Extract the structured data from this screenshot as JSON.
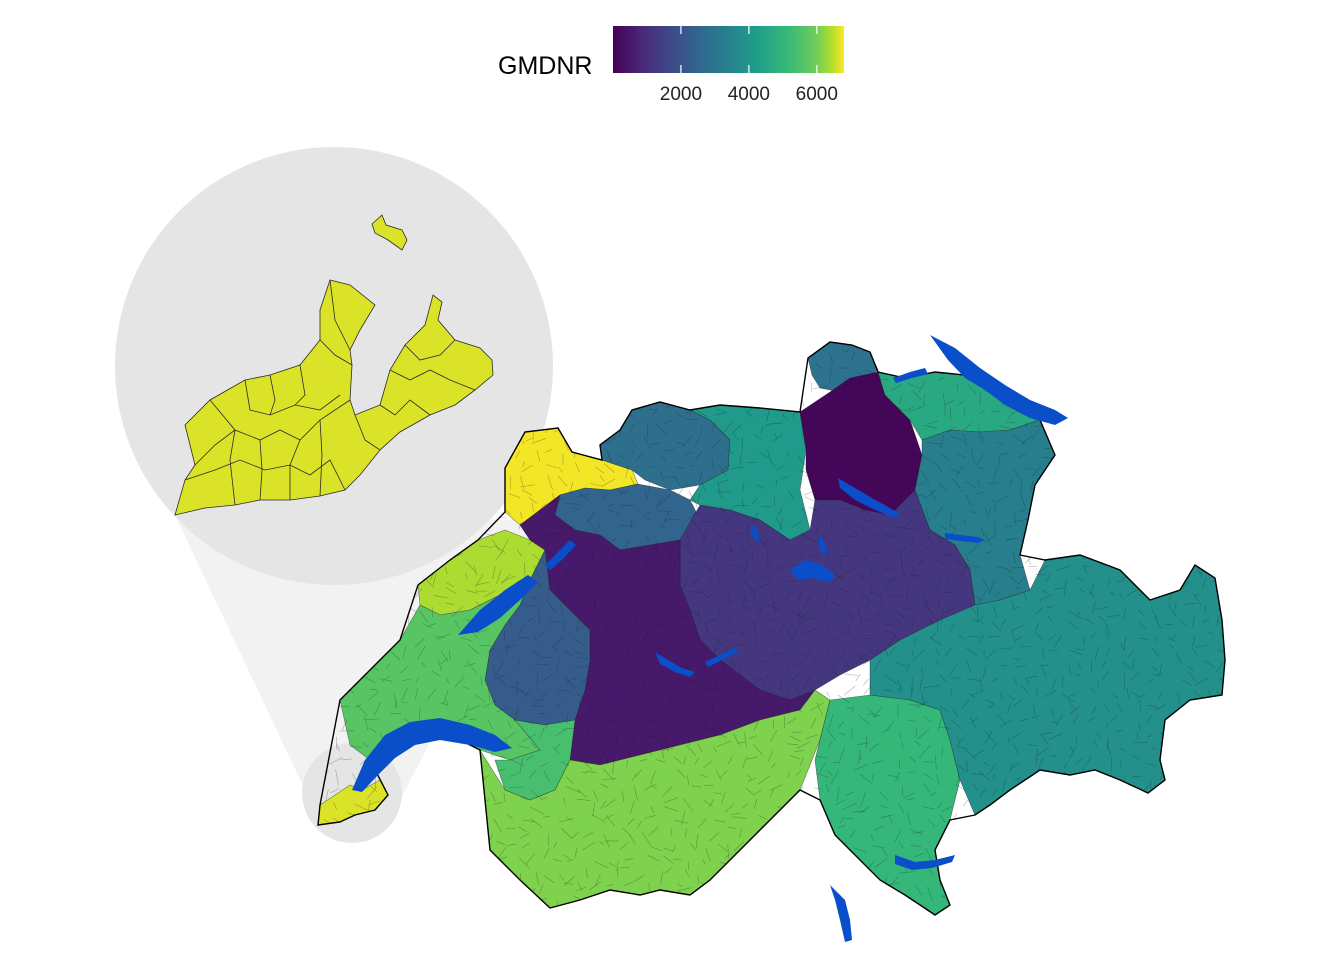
{
  "legend": {
    "title": "GMDNR",
    "ticks": [
      "2000",
      "4000",
      "6000"
    ],
    "tick_values": [
      2000,
      4000,
      6000
    ],
    "range": [
      1,
      6800
    ],
    "palette": "viridis"
  },
  "colors": {
    "lakes": "#0a4ec9",
    "inset_circle": "#e5e5e5",
    "callout_cone": "#f2f2f2",
    "border": "#000000"
  },
  "map": {
    "type": "choropleth",
    "region": "Switzerland",
    "unit": "municipality",
    "variable": "GMDNR",
    "inset": {
      "region": "Geneva",
      "scale": "magnified"
    },
    "regions": [
      {
        "id": "geneva",
        "value": 6640
      },
      {
        "id": "jura",
        "value": 6750
      },
      {
        "id": "neuchatel",
        "value": 6400
      },
      {
        "id": "vaud",
        "value": 5650
      },
      {
        "id": "valais",
        "value": 6100
      },
      {
        "id": "fribourg",
        "value": 2250
      },
      {
        "id": "bern",
        "value": 500
      },
      {
        "id": "solothurn",
        "value": 2500
      },
      {
        "id": "basel",
        "value": 2800
      },
      {
        "id": "aargau",
        "value": 4100
      },
      {
        "id": "zurich",
        "value": 100
      },
      {
        "id": "schaffhausen",
        "value": 2900
      },
      {
        "id": "thurgau",
        "value": 4600
      },
      {
        "id": "stgallen",
        "value": 3300
      },
      {
        "id": "central",
        "value": 1200
      },
      {
        "id": "graubunden",
        "value": 3800
      },
      {
        "id": "ticino",
        "value": 5100
      },
      {
        "id": "vaud_east",
        "value": 5400
      }
    ]
  }
}
